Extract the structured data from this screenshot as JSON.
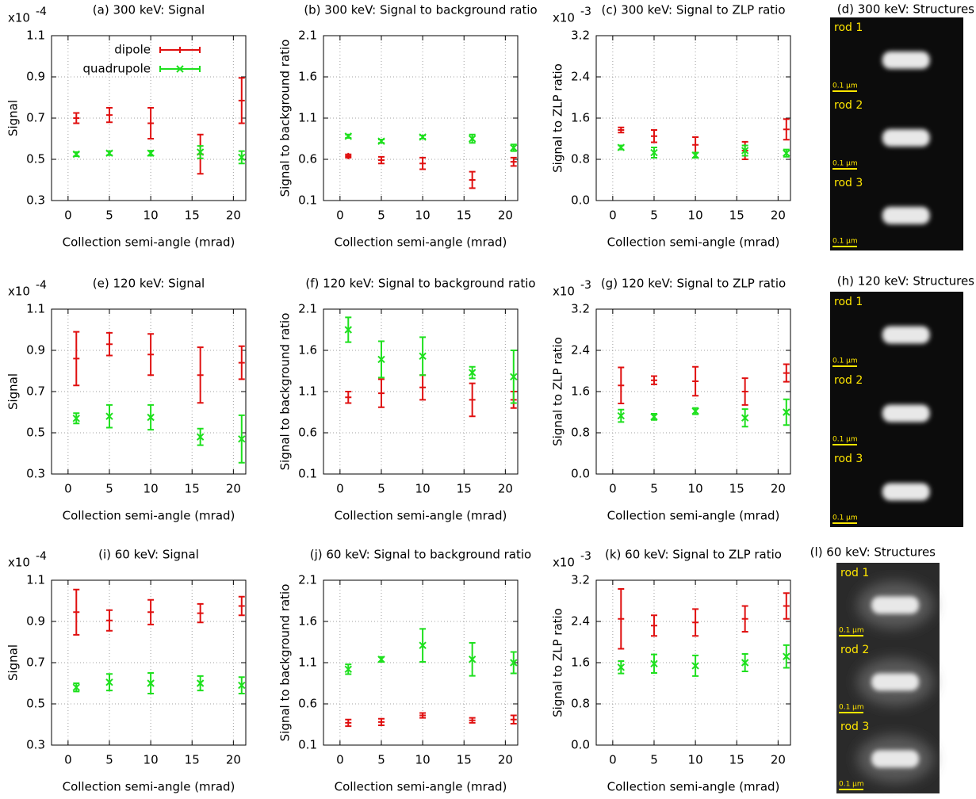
{
  "chart_data": [
    {
      "type": "errorbar",
      "title": "(a) 300 keV: Signal",
      "xlabel": "Collection semi-angle (mrad)",
      "ylabel": "Signal",
      "y_multiplier": "x10",
      "y_exponent": "-4",
      "x": [
        1,
        5,
        10,
        16,
        21
      ],
      "xlim": [
        -2,
        21.5
      ],
      "xticks": [
        0,
        5,
        10,
        15,
        20
      ],
      "ylim": [
        0.3,
        1.1
      ],
      "yticks": [
        0.3,
        0.5,
        0.7,
        0.9,
        1.1
      ],
      "grid": true,
      "legend": "top right",
      "series": [
        {
          "name": "dipole",
          "color": "#e01010",
          "marker": "+",
          "values": [
            0.7,
            0.715,
            0.675,
            0.525,
            0.785
          ],
          "errors": [
            0.025,
            0.035,
            0.075,
            0.095,
            0.11
          ]
        },
        {
          "name": "quadrupole",
          "color": "#1ee01e",
          "marker": "x",
          "values": [
            0.525,
            0.53,
            0.53,
            0.535,
            0.51
          ],
          "errors": [
            0.01,
            0.01,
            0.012,
            0.03,
            0.03
          ]
        }
      ]
    },
    {
      "type": "errorbar",
      "title": "(b) 300 keV: Signal to background ratio",
      "xlabel": "Collection semi-angle (mrad)",
      "ylabel": "Signal to background ratio",
      "x": [
        1,
        5,
        10,
        16,
        21
      ],
      "xlim": [
        -2,
        21.5
      ],
      "xticks": [
        0,
        5,
        10,
        15,
        20
      ],
      "ylim": [
        0.1,
        2.1
      ],
      "yticks": [
        0.1,
        0.6,
        1.1,
        1.6,
        2.1
      ],
      "grid": true,
      "series": [
        {
          "color": "#e01010",
          "marker": "+",
          "values": [
            0.64,
            0.59,
            0.55,
            0.35,
            0.57
          ],
          "errors": [
            0.02,
            0.04,
            0.07,
            0.1,
            0.05
          ]
        },
        {
          "color": "#1ee01e",
          "marker": "x",
          "values": [
            0.88,
            0.82,
            0.87,
            0.85,
            0.74
          ],
          "errors": [
            0.02,
            0.02,
            0.02,
            0.05,
            0.04
          ]
        }
      ]
    },
    {
      "type": "errorbar",
      "title": "(c) 300 keV: Signal to ZLP ratio",
      "xlabel": "Collection semi-angle (mrad)",
      "ylabel": "Signal to ZLP ratio",
      "y_multiplier": "x10",
      "y_exponent": "-3",
      "x": [
        1,
        5,
        10,
        16,
        21
      ],
      "xlim": [
        -2,
        21.5
      ],
      "xticks": [
        0,
        5,
        10,
        15,
        20
      ],
      "ylim": [
        0,
        3.2
      ],
      "yticks": [
        {
          "value": 0,
          "label": "0.0"
        },
        0.8,
        1.6,
        2.4,
        3.2
      ],
      "grid": true,
      "series": [
        {
          "color": "#e01010",
          "marker": "+",
          "values": [
            1.37,
            1.25,
            1.08,
            0.97,
            1.38
          ],
          "errors": [
            0.05,
            0.12,
            0.15,
            0.17,
            0.2
          ]
        },
        {
          "color": "#1ee01e",
          "marker": "x",
          "values": [
            1.03,
            0.93,
            0.88,
            0.97,
            0.92
          ],
          "errors": [
            0.04,
            0.1,
            0.05,
            0.1,
            0.07
          ]
        }
      ]
    },
    {
      "type": "errorbar",
      "title": "(e) 120 keV: Signal",
      "xlabel": "Collection semi-angle (mrad)",
      "ylabel": "Signal",
      "y_multiplier": "x10",
      "y_exponent": "-4",
      "x": [
        1,
        5,
        10,
        16,
        21
      ],
      "xlim": [
        -2,
        21.5
      ],
      "xticks": [
        0,
        5,
        10,
        15,
        20
      ],
      "ylim": [
        0.3,
        1.1
      ],
      "yticks": [
        0.3,
        0.5,
        0.7,
        0.9,
        1.1
      ],
      "grid": true,
      "series": [
        {
          "color": "#e01010",
          "marker": "+",
          "values": [
            0.86,
            0.93,
            0.88,
            0.78,
            0.84
          ],
          "errors": [
            0.13,
            0.055,
            0.1,
            0.135,
            0.08
          ]
        },
        {
          "color": "#1ee01e",
          "marker": "x",
          "values": [
            0.57,
            0.58,
            0.575,
            0.48,
            0.47
          ],
          "errors": [
            0.025,
            0.055,
            0.06,
            0.04,
            0.115
          ]
        }
      ]
    },
    {
      "type": "errorbar",
      "title": "(f) 120 keV: Signal to background ratio",
      "xlabel": "Collection semi-angle (mrad)",
      "ylabel": "Signal to background ratio",
      "x": [
        1,
        5,
        10,
        16,
        21
      ],
      "xlim": [
        -2,
        21.5
      ],
      "xticks": [
        0,
        5,
        10,
        15,
        20
      ],
      "ylim": [
        0.1,
        2.1
      ],
      "yticks": [
        0.1,
        0.6,
        1.1,
        1.6,
        2.1
      ],
      "grid": true,
      "series": [
        {
          "color": "#e01010",
          "marker": "+",
          "values": [
            1.03,
            1.08,
            1.15,
            1.0,
            1.0
          ],
          "errors": [
            0.07,
            0.17,
            0.15,
            0.2,
            0.1
          ]
        },
        {
          "color": "#1ee01e",
          "marker": "x",
          "values": [
            1.85,
            1.49,
            1.53,
            1.33,
            1.28
          ],
          "errors": [
            0.15,
            0.22,
            0.23,
            0.07,
            0.32
          ]
        }
      ]
    },
    {
      "type": "errorbar",
      "title": "(g) 120 keV: Signal to ZLP ratio",
      "xlabel": "Collection semi-angle (mrad)",
      "ylabel": "Signal to ZLP ratio",
      "y_multiplier": "x10",
      "y_exponent": "-3",
      "x": [
        1,
        5,
        10,
        16,
        21
      ],
      "xlim": [
        -2,
        21.5
      ],
      "xticks": [
        0,
        5,
        10,
        15,
        20
      ],
      "ylim": [
        0,
        3.2
      ],
      "yticks": [
        {
          "value": 0,
          "label": "0.0"
        },
        0.8,
        1.6,
        2.4,
        3.2
      ],
      "grid": true,
      "series": [
        {
          "color": "#e01010",
          "marker": "+",
          "values": [
            1.72,
            1.82,
            1.8,
            1.6,
            1.96
          ],
          "errors": [
            0.35,
            0.08,
            0.28,
            0.26,
            0.17
          ]
        },
        {
          "color": "#1ee01e",
          "marker": "x",
          "values": [
            1.13,
            1.11,
            1.22,
            1.09,
            1.2
          ],
          "errors": [
            0.12,
            0.06,
            0.06,
            0.17,
            0.25
          ]
        }
      ]
    },
    {
      "type": "errorbar",
      "title": "(i) 60 keV: Signal",
      "xlabel": "Collection semi-angle (mrad)",
      "ylabel": "Signal",
      "y_multiplier": "x10",
      "y_exponent": "-4",
      "x": [
        1,
        5,
        10,
        16,
        21
      ],
      "xlim": [
        -2,
        21.5
      ],
      "xticks": [
        0,
        5,
        10,
        15,
        20
      ],
      "ylim": [
        0.3,
        1.1
      ],
      "yticks": [
        0.3,
        0.5,
        0.7,
        0.9,
        1.1
      ],
      "grid": true,
      "series": [
        {
          "color": "#e01010",
          "marker": "+",
          "values": [
            0.945,
            0.905,
            0.945,
            0.94,
            0.975
          ],
          "errors": [
            0.11,
            0.05,
            0.06,
            0.045,
            0.045
          ]
        },
        {
          "color": "#1ee01e",
          "marker": "x",
          "values": [
            0.58,
            0.605,
            0.6,
            0.6,
            0.59
          ],
          "errors": [
            0.02,
            0.04,
            0.05,
            0.035,
            0.04
          ]
        }
      ]
    },
    {
      "type": "errorbar",
      "title": "(j) 60 keV: Signal to background ratio",
      "xlabel": "Collection semi-angle (mrad)",
      "ylabel": "Signal to background ratio",
      "x": [
        1,
        5,
        10,
        16,
        21
      ],
      "xlim": [
        -2,
        21.5
      ],
      "xticks": [
        0,
        5,
        10,
        15,
        20
      ],
      "ylim": [
        0.1,
        2.1
      ],
      "yticks": [
        0.1,
        0.6,
        1.1,
        1.6,
        2.1
      ],
      "grid": true,
      "series": [
        {
          "color": "#e01010",
          "marker": "+",
          "values": [
            0.37,
            0.38,
            0.46,
            0.4,
            0.41
          ],
          "errors": [
            0.04,
            0.04,
            0.03,
            0.03,
            0.05
          ]
        },
        {
          "color": "#1ee01e",
          "marker": "x",
          "values": [
            1.02,
            1.14,
            1.31,
            1.14,
            1.1
          ],
          "errors": [
            0.06,
            0.03,
            0.2,
            0.2,
            0.13
          ]
        }
      ]
    },
    {
      "type": "errorbar",
      "title": "(k) 60 keV: Signal to ZLP ratio",
      "xlabel": "Collection semi-angle (mrad)",
      "ylabel": "Signal to ZLP ratio",
      "y_multiplier": "x10",
      "y_exponent": "-3",
      "x": [
        1,
        5,
        10,
        16,
        21
      ],
      "xlim": [
        -2,
        21.5
      ],
      "xticks": [
        0,
        5,
        10,
        15,
        20
      ],
      "ylim": [
        0,
        3.2
      ],
      "yticks": [
        {
          "value": 0,
          "label": "0.0"
        },
        0.8,
        1.6,
        2.4,
        3.2
      ],
      "grid": true,
      "series": [
        {
          "color": "#e01010",
          "marker": "+",
          "values": [
            2.45,
            2.32,
            2.38,
            2.45,
            2.7
          ],
          "errors": [
            0.58,
            0.2,
            0.26,
            0.25,
            0.25
          ]
        },
        {
          "color": "#1ee01e",
          "marker": "x",
          "values": [
            1.51,
            1.58,
            1.54,
            1.6,
            1.72
          ],
          "errors": [
            0.12,
            0.18,
            0.2,
            0.17,
            0.22
          ]
        }
      ]
    }
  ],
  "image_panels": [
    {
      "title": "(d) 300 keV: Structures",
      "tiles": [
        {
          "label": "rod 1",
          "scale": "0.1 µm"
        },
        {
          "label": "rod 2",
          "scale": "0.1 µm"
        },
        {
          "label": "rod 3",
          "scale": "0.1 µm"
        }
      ]
    },
    {
      "title": "(h) 120 keV: Structures",
      "tiles": [
        {
          "label": "rod 1",
          "scale": "0.1 µm"
        },
        {
          "label": "rod 2",
          "scale": "0.1 µm"
        },
        {
          "label": "rod 3",
          "scale": "0.1 µm"
        }
      ]
    },
    {
      "title": "(l) 60 keV: Structures",
      "tiles": [
        {
          "label": "rod 1",
          "scale": "0.1 µm"
        },
        {
          "label": "rod 2",
          "scale": "0.1 µm"
        },
        {
          "label": "rod 3",
          "scale": "0.1 µm"
        }
      ]
    }
  ]
}
